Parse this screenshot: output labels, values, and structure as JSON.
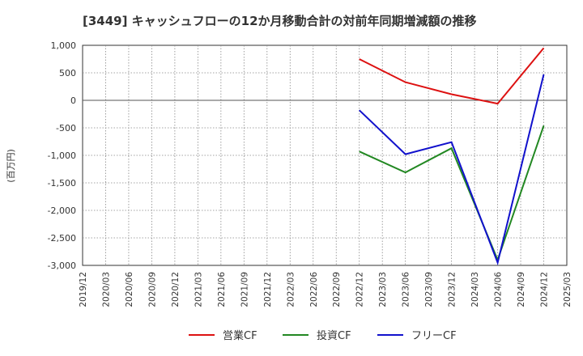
{
  "chart_data": {
    "type": "line",
    "title": "[3449]  キャッシュフローの12か月移動合計の対前年同期増減額の推移",
    "ylabel": "(百万円)",
    "xlabel": "",
    "ylim": [
      -3000,
      1000
    ],
    "yticks": [
      1000,
      500,
      0,
      -500,
      -1000,
      -1500,
      -2000,
      -2500,
      -3000
    ],
    "ytick_labels": [
      "1,000",
      "500",
      "0",
      "-500",
      "-1,000",
      "-1,500",
      "-2,000",
      "-2,500",
      "-3,000"
    ],
    "categories": [
      "2019/12",
      "2020/03",
      "2020/06",
      "2020/09",
      "2020/12",
      "2021/03",
      "2021/06",
      "2021/09",
      "2021/12",
      "2022/03",
      "2022/06",
      "2022/09",
      "2022/12",
      "2023/03",
      "2023/06",
      "2023/09",
      "2023/12",
      "2024/03",
      "2024/06",
      "2024/09",
      "2024/12",
      "2025/03"
    ],
    "grid": true,
    "legend_position": "bottom",
    "series": [
      {
        "name": "営業CF",
        "color": "#dd1111",
        "points": [
          [
            "2022/12",
            750
          ],
          [
            "2023/06",
            330
          ],
          [
            "2023/12",
            110
          ],
          [
            "2024/06",
            -60
          ],
          [
            "2024/12",
            950
          ]
        ]
      },
      {
        "name": "投資CF",
        "color": "#228822",
        "points": [
          [
            "2022/12",
            -930
          ],
          [
            "2023/06",
            -1310
          ],
          [
            "2023/12",
            -870
          ],
          [
            "2024/06",
            -2900
          ],
          [
            "2024/12",
            -460
          ]
        ]
      },
      {
        "name": "フリーCF",
        "color": "#1111cc",
        "points": [
          [
            "2022/12",
            -180
          ],
          [
            "2023/06",
            -980
          ],
          [
            "2023/12",
            -760
          ],
          [
            "2024/06",
            -2950
          ],
          [
            "2024/12",
            470
          ]
        ]
      }
    ]
  }
}
